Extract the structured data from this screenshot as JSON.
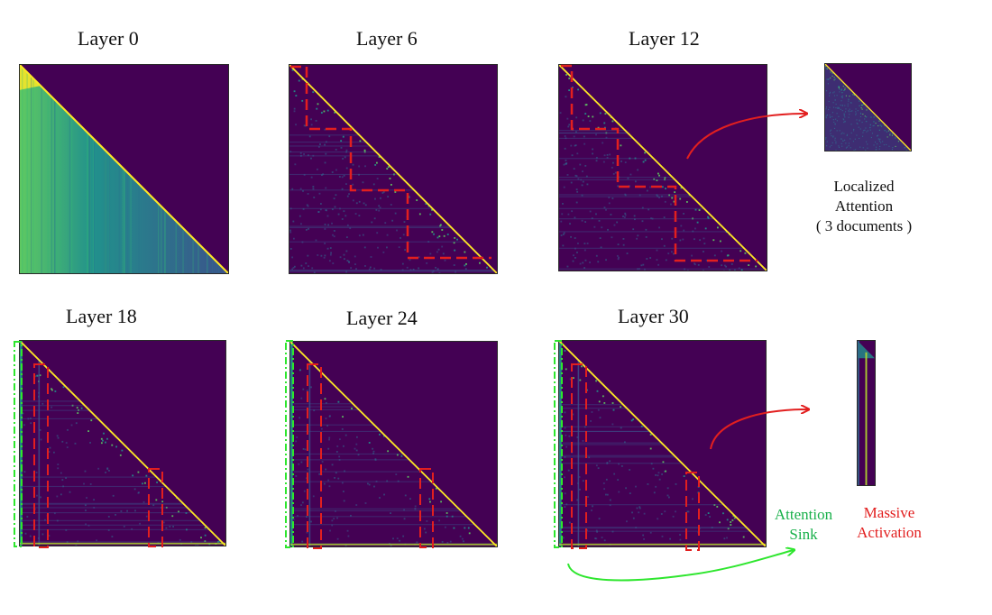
{
  "panels": [
    {
      "id": "layer-0",
      "title": "Layer 0",
      "style": "layer0"
    },
    {
      "id": "layer-6",
      "title": "Layer 6",
      "style": "blocks"
    },
    {
      "id": "layer-12",
      "title": "Layer 12",
      "style": "blocks"
    },
    {
      "id": "layer-18",
      "title": "Layer 18",
      "style": "sink"
    },
    {
      "id": "layer-24",
      "title": "Layer 24",
      "style": "sink"
    },
    {
      "id": "layer-30",
      "title": "Layer 30",
      "style": "sink"
    }
  ],
  "annotations": {
    "localized": {
      "line1": "Localized",
      "line2": "Attention",
      "line3": "( 3 documents )"
    },
    "sink": {
      "line1": "Attention",
      "line2": "Sink"
    },
    "massive": {
      "line1": "Massive",
      "line2": "Activation"
    }
  },
  "colors": {
    "background": "#440154",
    "bright": "#fde725",
    "mid": "#21918c",
    "dim": "#3b528b",
    "highlight_red": "#e21f1f",
    "highlight_green": "#2ee62e"
  }
}
